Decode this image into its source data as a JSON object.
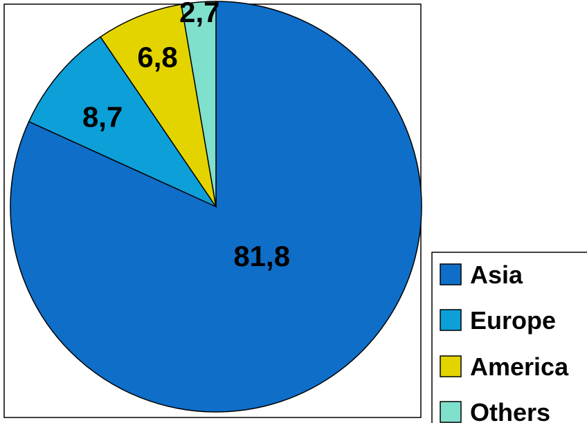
{
  "chart_data": {
    "type": "pie",
    "title": "",
    "categories": [
      "Asia",
      "Europe",
      "America",
      "Others"
    ],
    "values": [
      81.8,
      8.7,
      6.8,
      2.7
    ],
    "data_labels": [
      "81,8",
      "8,7",
      "6,8",
      "2,7"
    ],
    "colors": [
      "#0f6ec8",
      "#0d9fd8",
      "#e3d400",
      "#7fe0cc"
    ],
    "start": "12 o'clock",
    "direction": "clockwise",
    "legend": {
      "position": "bottom-right",
      "entries": [
        "Asia",
        "Europe",
        "America",
        "Others"
      ]
    }
  }
}
